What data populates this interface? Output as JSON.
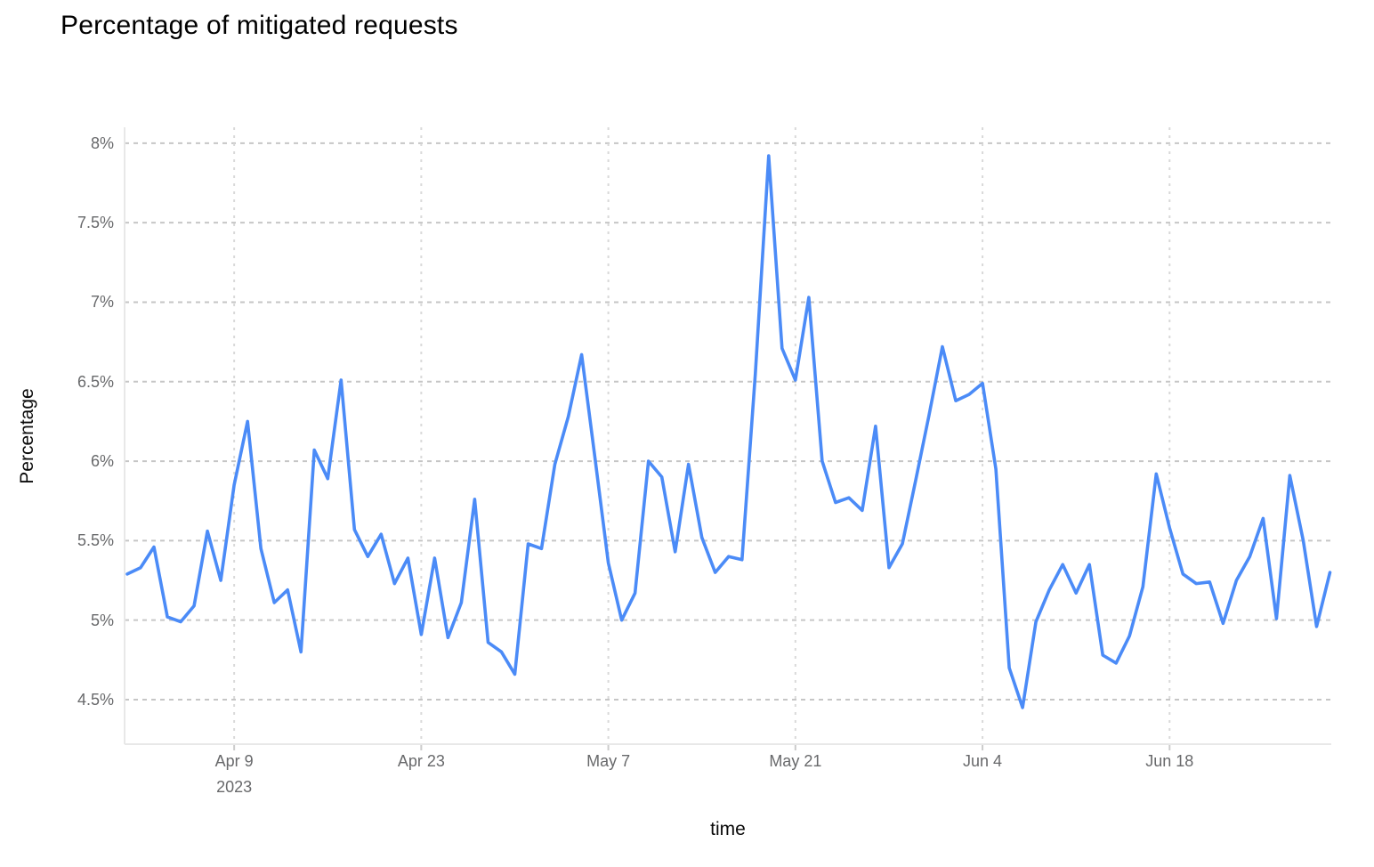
{
  "title": "Percentage of mitigated requests",
  "colors": {
    "line": "#4b8bf7",
    "h_grid": "#c6c6c6",
    "v_grid": "#d9d9d9",
    "axis_border": "#e8e8e8",
    "tick_mark": "#cccccc",
    "tick_text": "#68696b",
    "title_text": "#000000",
    "axis_title_text": "#0a0a0a",
    "background": "#ffffff"
  },
  "y_axis": {
    "title": "Percentage",
    "ticks": [
      {
        "label": "8%",
        "value": 8.0
      },
      {
        "label": "7.5%",
        "value": 7.5
      },
      {
        "label": "7%",
        "value": 7.0
      },
      {
        "label": "6.5%",
        "value": 6.5
      },
      {
        "label": "6%",
        "value": 6.0
      },
      {
        "label": "5.5%",
        "value": 5.5
      },
      {
        "label": "5%",
        "value": 5.0
      },
      {
        "label": "4.5%",
        "value": 4.5
      }
    ]
  },
  "x_axis": {
    "title": "time",
    "ticks": [
      {
        "label": "Apr 9",
        "sub": "2023",
        "day_index": 8
      },
      {
        "label": "Apr 23",
        "sub": "",
        "day_index": 22
      },
      {
        "label": "May 7",
        "sub": "",
        "day_index": 36
      },
      {
        "label": "May 21",
        "sub": "",
        "day_index": 50
      },
      {
        "label": "Jun 4",
        "sub": "",
        "day_index": 64
      },
      {
        "label": "Jun 18",
        "sub": "",
        "day_index": 78
      }
    ]
  },
  "chart_data": {
    "type": "line",
    "title": "Percentage of mitigated requests",
    "xlabel": "time",
    "ylabel": "Percentage",
    "ylim": [
      4.22,
      8.1
    ],
    "x_range_days": [
      -0.2,
      90.1
    ],
    "grid": "dashed",
    "legend": "none",
    "x": [
      "Apr 1",
      "Apr 2",
      "Apr 3",
      "Apr 4",
      "Apr 5",
      "Apr 6",
      "Apr 7",
      "Apr 8",
      "Apr 9",
      "Apr 10",
      "Apr 11",
      "Apr 12",
      "Apr 13",
      "Apr 14",
      "Apr 15",
      "Apr 16",
      "Apr 17",
      "Apr 18",
      "Apr 19",
      "Apr 20",
      "Apr 21",
      "Apr 22",
      "Apr 23",
      "Apr 24",
      "Apr 25",
      "Apr 26",
      "Apr 27",
      "Apr 28",
      "Apr 29",
      "Apr 30",
      "May 1",
      "May 2",
      "May 3",
      "May 4",
      "May 5",
      "May 6",
      "May 7",
      "May 8",
      "May 9",
      "May 10",
      "May 11",
      "May 12",
      "May 13",
      "May 14",
      "May 15",
      "May 16",
      "May 17",
      "May 18",
      "May 19",
      "May 20",
      "May 21",
      "May 22",
      "May 23",
      "May 24",
      "May 25",
      "May 26",
      "May 27",
      "May 28",
      "May 29",
      "May 30",
      "May 31",
      "Jun 1",
      "Jun 2",
      "Jun 3",
      "Jun 4",
      "Jun 5",
      "Jun 6",
      "Jun 7",
      "Jun 8",
      "Jun 9",
      "Jun 10",
      "Jun 11",
      "Jun 12",
      "Jun 13",
      "Jun 14",
      "Jun 15",
      "Jun 16",
      "Jun 17",
      "Jun 18",
      "Jun 19",
      "Jun 20",
      "Jun 21",
      "Jun 22",
      "Jun 23",
      "Jun 24",
      "Jun 25",
      "Jun 26",
      "Jun 27",
      "Jun 28",
      "Jun 29",
      "Jun 30"
    ],
    "values": [
      5.29,
      5.33,
      5.46,
      5.02,
      4.99,
      5.09,
      5.56,
      5.25,
      5.85,
      6.25,
      5.45,
      5.11,
      5.19,
      4.8,
      6.07,
      5.89,
      6.51,
      5.57,
      5.4,
      5.54,
      5.23,
      5.39,
      4.91,
      5.39,
      4.89,
      5.11,
      5.76,
      4.86,
      4.8,
      4.66,
      5.48,
      5.45,
      5.98,
      6.28,
      6.67,
      6.02,
      5.36,
      5.0,
      5.17,
      6.0,
      5.9,
      5.43,
      5.98,
      5.52,
      5.3,
      5.4,
      5.38,
      6.55,
      7.92,
      6.71,
      6.51,
      7.03,
      6.0,
      5.74,
      5.77,
      5.69,
      6.22,
      5.33,
      5.48,
      5.88,
      6.29,
      6.72,
      6.38,
      6.42,
      6.49,
      5.95,
      4.7,
      4.45,
      4.99,
      5.19,
      5.35,
      5.17,
      5.35,
      4.78,
      4.73,
      4.9,
      5.21,
      5.92,
      5.58,
      5.29,
      5.23,
      5.24,
      4.98,
      5.25,
      5.4,
      5.64,
      5.01,
      5.91,
      5.5,
      4.96,
      5.3
    ]
  }
}
